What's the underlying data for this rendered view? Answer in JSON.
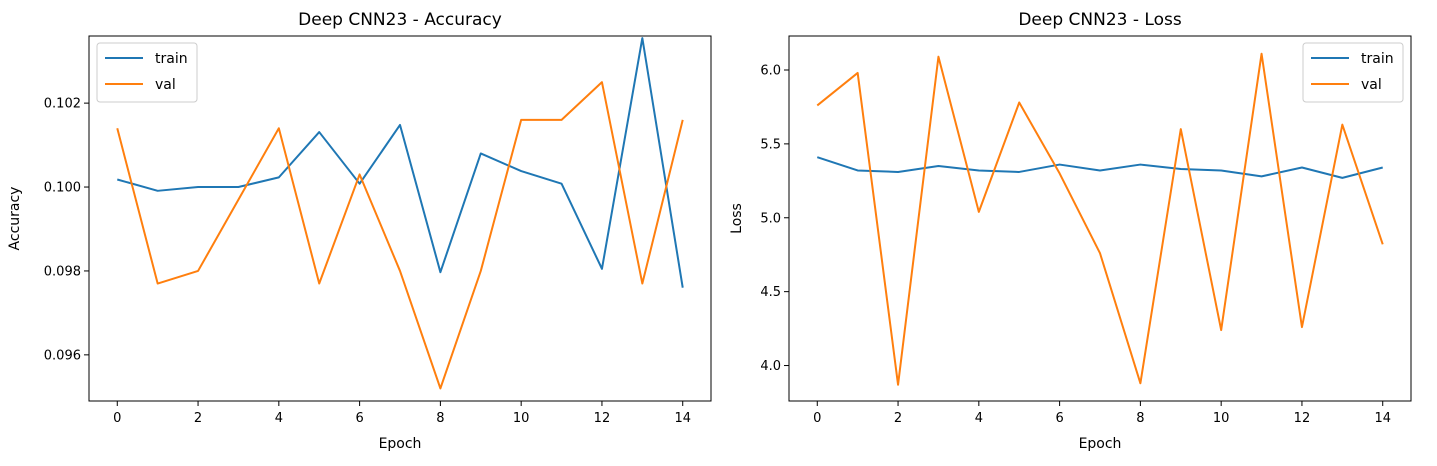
{
  "colors": {
    "train": "#1f77b4",
    "val": "#ff7f0e"
  },
  "chart_data": [
    {
      "type": "line",
      "title": "Deep CNN23 - Accuracy",
      "xlabel": "Epoch",
      "ylabel": "Accuracy",
      "x": [
        0,
        1,
        2,
        3,
        4,
        5,
        6,
        7,
        8,
        9,
        10,
        11,
        12,
        13,
        14
      ],
      "xlim": [
        -0.7,
        14.7
      ],
      "ylim": [
        0.0949,
        0.1036
      ],
      "xticks": [
        0,
        2,
        4,
        6,
        8,
        10,
        12,
        14
      ],
      "xtick_labels": [
        "0",
        "2",
        "4",
        "6",
        "8",
        "10",
        "12",
        "14"
      ],
      "yticks": [
        0.096,
        0.098,
        0.1,
        0.102
      ],
      "ytick_labels": [
        "0.096",
        "0.098",
        "0.100",
        "0.102"
      ],
      "legend_position": "top-left",
      "grid": false,
      "series": [
        {
          "name": "train",
          "values": [
            0.10018,
            0.09991,
            0.1,
            0.1,
            0.10023,
            0.10131,
            0.10008,
            0.10148,
            0.09797,
            0.1008,
            0.10038,
            0.10008,
            0.09805,
            0.10355,
            0.0976
          ]
        },
        {
          "name": "val",
          "values": [
            0.1014,
            0.0977,
            0.098,
            0.0997,
            0.1014,
            0.0977,
            0.1003,
            0.098,
            0.0952,
            0.098,
            0.1016,
            0.1016,
            0.1025,
            0.0977,
            0.1016
          ]
        }
      ]
    },
    {
      "type": "line",
      "title": "Deep CNN23 - Loss",
      "xlabel": "Epoch",
      "ylabel": "Loss",
      "x": [
        0,
        1,
        2,
        3,
        4,
        5,
        6,
        7,
        8,
        9,
        10,
        11,
        12,
        13,
        14
      ],
      "xlim": [
        -0.7,
        14.7
      ],
      "ylim": [
        3.76,
        6.23
      ],
      "xticks": [
        0,
        2,
        4,
        6,
        8,
        10,
        12,
        14
      ],
      "xtick_labels": [
        "0",
        "2",
        "4",
        "6",
        "8",
        "10",
        "12",
        "14"
      ],
      "yticks": [
        4.0,
        4.5,
        5.0,
        5.5,
        6.0
      ],
      "ytick_labels": [
        "4.0",
        "4.5",
        "5.0",
        "5.5",
        "6.0"
      ],
      "legend_position": "top-right",
      "grid": false,
      "series": [
        {
          "name": "train",
          "values": [
            5.41,
            5.32,
            5.31,
            5.35,
            5.32,
            5.31,
            5.36,
            5.32,
            5.36,
            5.33,
            5.32,
            5.28,
            5.34,
            5.27,
            5.34
          ]
        },
        {
          "name": "val",
          "values": [
            5.76,
            5.98,
            3.87,
            6.09,
            5.04,
            5.78,
            5.3,
            4.76,
            3.88,
            5.6,
            4.24,
            6.11,
            4.26,
            5.63,
            4.82
          ]
        }
      ]
    }
  ]
}
